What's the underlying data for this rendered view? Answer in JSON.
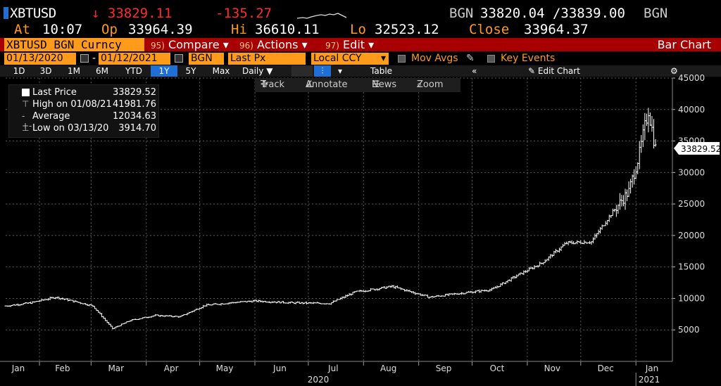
{
  "header": {
    "ticker": "XBTUSD",
    "last": "↓ 33829.11",
    "change": "-135.27",
    "bid_src": "BGN",
    "bid_ask": "33820.04 /33839.00",
    "ask_src": "BGN",
    "at_label": "At",
    "at_value": "10:07",
    "op_label": "Op",
    "op_value": "33964.39",
    "hi_label": "Hi",
    "hi_value": "36610.11",
    "lo_label": "Lo",
    "lo_value": "32523.12",
    "close_label": "Close",
    "close_value": "33964.37"
  },
  "menubar": {
    "security": "XBTUSD BGN Curncy",
    "compare_num": "95)",
    "compare": "Compare",
    "actions_num": "96)",
    "actions": "Actions",
    "edit_num": "97)",
    "edit": "Edit",
    "title": "Bar Chart"
  },
  "controls": {
    "start_date": "01/13/2020",
    "end_date": "01/12/2021",
    "dash": "-",
    "source": "BGN",
    "field": "Last Px",
    "currency": "Local CCY",
    "mov_avgs": "Mov Avgs",
    "key_events": "Key Events"
  },
  "ranges": {
    "items": [
      "1D",
      "3D",
      "1M",
      "6M",
      "YTD",
      "1Y",
      "5Y",
      "Max"
    ],
    "selected": "1Y",
    "frequency": "Daily",
    "table": "Table",
    "collapse": "«",
    "edit_chart": "Edit Chart"
  },
  "toolbar": {
    "track": "Track",
    "annotate": "Annotate",
    "news": "News",
    "zoom": "Zoom"
  },
  "legend": {
    "last_price_label": "Last Price",
    "last_price_value": "33829.52",
    "high_label": "High on 01/08/21",
    "high_value": "41981.76",
    "average_label": "Average",
    "average_value": "12034.63",
    "low_label": "Low on 03/13/20",
    "low_value": "3914.70"
  },
  "chart_data": {
    "type": "bar",
    "series_name": "XBTUSD BGN Curncy",
    "ylim": [
      0,
      45000
    ],
    "yticks": [
      5000,
      10000,
      15000,
      20000,
      25000,
      30000,
      35000,
      40000,
      45000
    ],
    "last_value_label": "33829.52",
    "x_months": [
      "Jan",
      "Feb",
      "Mar",
      "Apr",
      "May",
      "Jun",
      "Jul",
      "Aug",
      "Sep",
      "Oct",
      "Nov",
      "Dec",
      "Jan"
    ],
    "x_years": [
      "2020",
      "2021"
    ],
    "grid": true,
    "colors": {
      "bars": "#ffffff",
      "background": "#000000",
      "grid": "#5a5a5a"
    },
    "approx_weekly_close": [
      {
        "x": "2020-01-13",
        "y": 8800
      },
      {
        "x": "2020-01-27",
        "y": 9300
      },
      {
        "x": "2020-02-10",
        "y": 10200
      },
      {
        "x": "2020-02-24",
        "y": 9300
      },
      {
        "x": "2020-03-02",
        "y": 8800
      },
      {
        "x": "2020-03-13",
        "y": 5200
      },
      {
        "x": "2020-03-23",
        "y": 6500
      },
      {
        "x": "2020-04-06",
        "y": 7300
      },
      {
        "x": "2020-04-20",
        "y": 7100
      },
      {
        "x": "2020-05-04",
        "y": 8900
      },
      {
        "x": "2020-05-18",
        "y": 9300
      },
      {
        "x": "2020-06-01",
        "y": 9600
      },
      {
        "x": "2020-06-22",
        "y": 9300
      },
      {
        "x": "2020-07-13",
        "y": 9200
      },
      {
        "x": "2020-07-27",
        "y": 11000
      },
      {
        "x": "2020-08-17",
        "y": 11900
      },
      {
        "x": "2020-09-07",
        "y": 10200
      },
      {
        "x": "2020-09-21",
        "y": 10700
      },
      {
        "x": "2020-10-12",
        "y": 11400
      },
      {
        "x": "2020-10-26",
        "y": 13600
      },
      {
        "x": "2020-11-09",
        "y": 15600
      },
      {
        "x": "2020-11-23",
        "y": 18800
      },
      {
        "x": "2020-12-07",
        "y": 19000
      },
      {
        "x": "2020-12-17",
        "y": 23000
      },
      {
        "x": "2020-12-28",
        "y": 27000
      },
      {
        "x": "2021-01-03",
        "y": 33000
      },
      {
        "x": "2021-01-08",
        "y": 40000
      },
      {
        "x": "2021-01-12",
        "y": 33829.52
      }
    ]
  }
}
